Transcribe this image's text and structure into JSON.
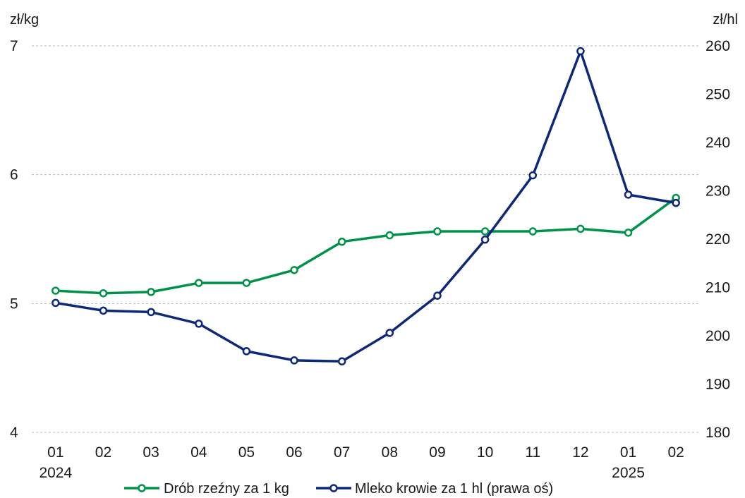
{
  "chart_data": {
    "type": "line",
    "categories": [
      "01",
      "02",
      "03",
      "04",
      "05",
      "06",
      "07",
      "08",
      "09",
      "10",
      "11",
      "12",
      "01",
      "02"
    ],
    "year_labels": [
      {
        "index": 0,
        "label": "2024"
      },
      {
        "index": 12,
        "label": "2025"
      }
    ],
    "left_axis": {
      "unit": "zł/kg",
      "min": 4,
      "max": 7,
      "ticks": [
        "4",
        "5",
        "6",
        "7"
      ]
    },
    "right_axis": {
      "unit": "zł/hl",
      "min": 180,
      "max": 260,
      "ticks": [
        "180",
        "190",
        "200",
        "210",
        "220",
        "230",
        "240",
        "250",
        "260"
      ]
    },
    "grid": true,
    "legend_position": "bottom",
    "series": [
      {
        "name": "Drób rzeźny za 1 kg",
        "axis": "left",
        "color": "#00924a",
        "values": [
          5.1,
          5.08,
          5.09,
          5.16,
          5.16,
          5.26,
          5.48,
          5.53,
          5.56,
          5.56,
          5.56,
          5.58,
          5.55,
          5.82
        ]
      },
      {
        "name": "Mleko krowie za 1 hl (prawa oś)",
        "axis": "right",
        "color": "#0d2878",
        "values": [
          206.8,
          205.2,
          204.9,
          202.5,
          196.8,
          194.9,
          194.7,
          200.6,
          208.3,
          219.9,
          233.2,
          258.9,
          229.2,
          227.5
        ]
      }
    ]
  }
}
